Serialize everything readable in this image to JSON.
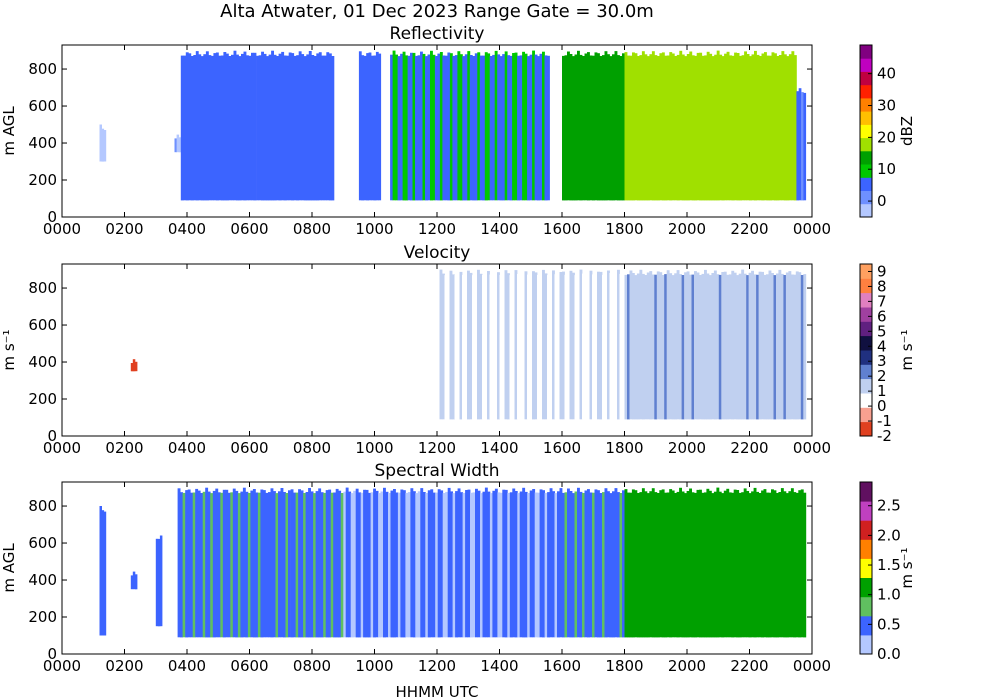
{
  "figure": {
    "suptitle": "Alta Atwater, 01 Dec 2023 Range Gate = 30.0m",
    "xlabel": "HHMM UTC"
  },
  "chart_data": [
    {
      "type": "heatmap",
      "title": "Reflectivity",
      "ylabel": "m AGL",
      "xlim": [
        0,
        2400
      ],
      "ylim": [
        0,
        930
      ],
      "xticks": [
        "0000",
        "0200",
        "0400",
        "0600",
        "0800",
        "1000",
        "1200",
        "1400",
        "1600",
        "1800",
        "2000",
        "2200",
        "0000"
      ],
      "yticks": [
        0,
        200,
        400,
        600,
        800
      ],
      "colorbar": {
        "label": "dBZ",
        "range": [
          -5,
          49
        ],
        "ticks": [
          0,
          10,
          20,
          30,
          40
        ],
        "colors": [
          "#b4c8ff",
          "#6e90ff",
          "#3c64ff",
          "#00c800",
          "#00a000",
          "#a0e000",
          "#ffff00",
          "#ffc000",
          "#ff8000",
          "#ff2000",
          "#c00040",
          "#c000c0",
          "#800080"
        ]
      },
      "coverage_segments": [
        {
          "x0": 120,
          "x1": 140,
          "y0": 300,
          "y1": 500,
          "value": -2
        },
        {
          "x0": 360,
          "x1": 380,
          "y0": 350,
          "y1": 450,
          "value": -1
        },
        {
          "x0": 380,
          "x1": 870,
          "y0": 90,
          "y1": 900,
          "value": 6
        },
        {
          "x0": 950,
          "x1": 1020,
          "y0": 90,
          "y1": 900,
          "value": 6
        },
        {
          "x0": 1050,
          "x1": 1560,
          "y0": 90,
          "y1": 900,
          "value": 7
        },
        {
          "x0": 1600,
          "x1": 1800,
          "y0": 90,
          "y1": 900,
          "value": 14
        },
        {
          "x0": 1800,
          "x1": 2350,
          "y0": 90,
          "y1": 900,
          "value": 17
        },
        {
          "x0": 2350,
          "x1": 2380,
          "y0": 90,
          "y1": 700,
          "value": 4
        }
      ]
    },
    {
      "type": "heatmap",
      "title": "Velocity",
      "ylabel": "m s⁻¹",
      "xlim": [
        0,
        2400
      ],
      "ylim": [
        0,
        930
      ],
      "xticks": [
        "0000",
        "0200",
        "0400",
        "0600",
        "0800",
        "1000",
        "1200",
        "1400",
        "1600",
        "1800",
        "2000",
        "2200",
        "0000"
      ],
      "yticks": [
        0,
        200,
        400,
        600,
        800
      ],
      "colorbar": {
        "label": "m s⁻¹",
        "range": [
          -2,
          9.5
        ],
        "ticks": [
          -2,
          -1,
          0,
          1,
          2,
          3,
          4,
          5,
          6,
          7,
          8,
          9
        ],
        "colors": [
          "#e04020",
          "#f8a090",
          "#ffffff",
          "#c0d0f0",
          "#6080d0",
          "#203080",
          "#101040",
          "#602080",
          "#a040a0",
          "#e080c0",
          "#ff8040",
          "#ffa060"
        ]
      },
      "coverage_segments": [
        {
          "x0": 120,
          "x1": 140,
          "y0": 150,
          "y1": 500,
          "value": 0.5
        },
        {
          "x0": 220,
          "x1": 240,
          "y0": 350,
          "y1": 420,
          "value": -1.5
        },
        {
          "x0": 300,
          "x1": 320,
          "y0": 150,
          "y1": 650,
          "value": 0.3
        },
        {
          "x0": 380,
          "x1": 1200,
          "y0": 90,
          "y1": 900,
          "value": 0.4
        },
        {
          "x0": 1200,
          "x1": 1800,
          "y0": 90,
          "y1": 900,
          "value": 0.8
        },
        {
          "x0": 1800,
          "x1": 2380,
          "y0": 90,
          "y1": 900,
          "value": 1.6
        }
      ]
    },
    {
      "type": "heatmap",
      "title": "Spectral Width",
      "ylabel": "m AGL",
      "xlim": [
        0,
        2400
      ],
      "ylim": [
        0,
        930
      ],
      "xticks": [
        "0000",
        "0200",
        "0400",
        "0600",
        "0800",
        "1000",
        "1200",
        "1400",
        "1600",
        "1800",
        "2000",
        "2200",
        "0000"
      ],
      "yticks": [
        0,
        200,
        400,
        600,
        800
      ],
      "colorbar": {
        "label": "m s⁻¹",
        "range": [
          0,
          2.9
        ],
        "ticks": [
          "0.0",
          "0.5",
          "1.0",
          "1.5",
          "2.0",
          "2.5"
        ],
        "colors": [
          "#b4c8ff",
          "#3c64ff",
          "#60c060",
          "#00a000",
          "#ffff00",
          "#ff8000",
          "#d02020",
          "#c040c0",
          "#601060"
        ]
      },
      "coverage_segments": [
        {
          "x0": 120,
          "x1": 140,
          "y0": 100,
          "y1": 800,
          "value": 0.4
        },
        {
          "x0": 220,
          "x1": 240,
          "y0": 350,
          "y1": 450,
          "value": 0.4
        },
        {
          "x0": 300,
          "x1": 320,
          "y0": 150,
          "y1": 650,
          "value": 0.4
        },
        {
          "x0": 370,
          "x1": 900,
          "y0": 90,
          "y1": 900,
          "value": 0.6
        },
        {
          "x0": 900,
          "x1": 1600,
          "y0": 90,
          "y1": 900,
          "value": 0.35
        },
        {
          "x0": 1600,
          "x1": 1800,
          "y0": 90,
          "y1": 900,
          "value": 0.6
        },
        {
          "x0": 1800,
          "x1": 2380,
          "y0": 90,
          "y1": 900,
          "value": 1.2
        }
      ]
    }
  ]
}
